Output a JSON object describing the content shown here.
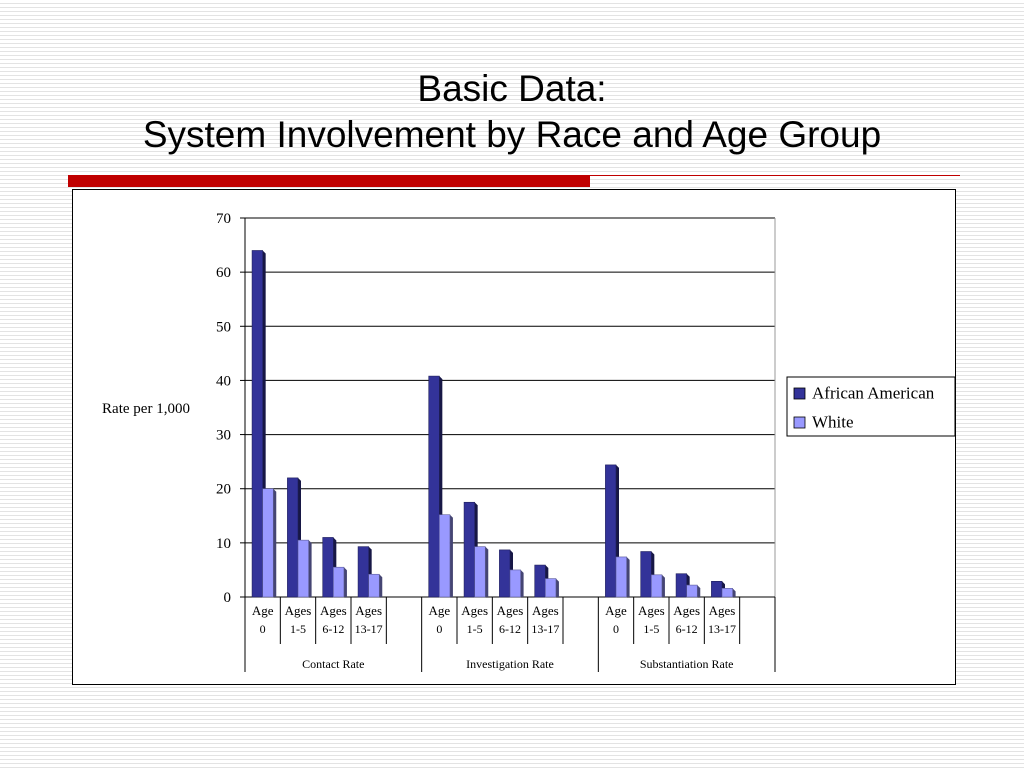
{
  "slide": {
    "title_line1": "Basic Data:",
    "title_line2": "System Involvement by Race and Age Group"
  },
  "colors": {
    "accent_bar": "#c00000",
    "african_american": "#333399",
    "white": "#9999ff",
    "gridline": "#000000"
  },
  "chart_data": {
    "type": "bar",
    "ylabel": "Rate per 1,000",
    "ylim": [
      0,
      70
    ],
    "yticks": [
      0,
      10,
      20,
      30,
      40,
      50,
      60,
      70
    ],
    "grid": true,
    "legend_position": "right",
    "groups": [
      {
        "label": "Contact Rate",
        "categories": [
          {
            "line1": "Age",
            "line2": "0"
          },
          {
            "line1": "Ages",
            "line2": "1-5"
          },
          {
            "line1": "Ages",
            "line2": "6-12"
          },
          {
            "line1": "Ages",
            "line2": "13-17"
          }
        ]
      },
      {
        "label": "Investigation Rate",
        "categories": [
          {
            "line1": "Age",
            "line2": "0"
          },
          {
            "line1": "Ages",
            "line2": "1-5"
          },
          {
            "line1": "Ages",
            "line2": "6-12"
          },
          {
            "line1": "Ages",
            "line2": "13-17"
          }
        ]
      },
      {
        "label": "Substantiation Rate",
        "categories": [
          {
            "line1": "Age",
            "line2": "0"
          },
          {
            "line1": "Ages",
            "line2": "1-5"
          },
          {
            "line1": "Ages",
            "line2": "6-12"
          },
          {
            "line1": "Ages",
            "line2": "13-17"
          }
        ]
      }
    ],
    "series": [
      {
        "name": "African American",
        "color": "#333399",
        "values": [
          64,
          22,
          11,
          9.3,
          40.8,
          17.5,
          8.7,
          5.9,
          24.4,
          8.4,
          4.3,
          2.9
        ]
      },
      {
        "name": "White",
        "color": "#9999ff",
        "values": [
          20,
          10.5,
          5.5,
          4.2,
          15.2,
          9.3,
          5,
          3.4,
          7.4,
          4.1,
          2.2,
          1.6
        ]
      }
    ]
  }
}
